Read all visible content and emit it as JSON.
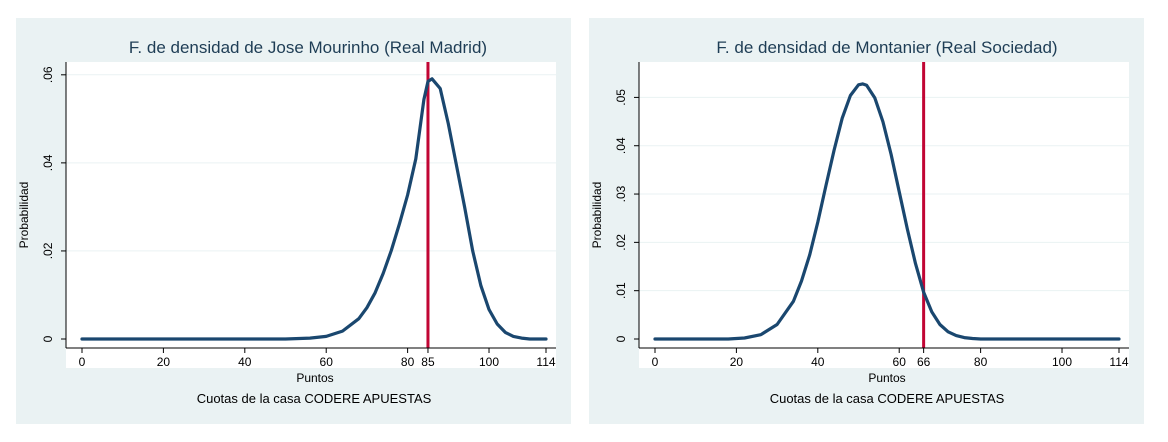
{
  "colors": {
    "panel_background": "#eaf2f3",
    "plot_background": "#ffffff",
    "curve": "#1a476f",
    "marker_line": "#c10534",
    "grid": "#eaf2f3"
  },
  "chart_data": [
    {
      "type": "line",
      "title": "F. de densidad de Jose Mourinho (Real Madrid)",
      "xlabel": "Puntos",
      "ylabel": "Probabilidad",
      "note": "Cuotas de la casa CODERE APUESTAS",
      "xlim": [
        0,
        114
      ],
      "ylim": [
        0,
        0.062
      ],
      "x_ticks": [
        0,
        20,
        40,
        60,
        80,
        85,
        100,
        114
      ],
      "y_ticks": [
        0,
        0.02,
        0.04,
        0.06
      ],
      "y_tick_labels": [
        "0",
        ".02",
        ".04",
        ".06"
      ],
      "grid": true,
      "vertical_line": 85,
      "series": [
        {
          "x": [
            0,
            50,
            56,
            60,
            64,
            68,
            70,
            72,
            74,
            76,
            78,
            80,
            82,
            84,
            85,
            86,
            88,
            90,
            92,
            94,
            96,
            98,
            100,
            102,
            104,
            106,
            108,
            110,
            114
          ],
          "y": [
            0,
            0,
            0.0002,
            0.0006,
            0.0018,
            0.0046,
            0.0071,
            0.0105,
            0.0149,
            0.0201,
            0.0262,
            0.0327,
            0.0409,
            0.0544,
            0.0585,
            0.0591,
            0.0569,
            0.0489,
            0.0394,
            0.03,
            0.02,
            0.0121,
            0.0067,
            0.0034,
            0.0015,
            0.0006,
            0.0002,
            0,
            0
          ]
        }
      ]
    },
    {
      "type": "line",
      "title": "F. de densidad de Montanier (Real Sociedad)",
      "xlabel": "Puntos",
      "ylabel": "Probabilidad",
      "note": "Cuotas de la casa CODERE APUESTAS",
      "xlim": [
        0,
        114
      ],
      "ylim": [
        0,
        0.0565
      ],
      "x_ticks": [
        0,
        20,
        40,
        60,
        66,
        80,
        100,
        114
      ],
      "y_ticks": [
        0,
        0.01,
        0.02,
        0.03,
        0.04,
        0.05
      ],
      "y_tick_labels": [
        "0",
        ".01",
        ".02",
        ".03",
        ".04",
        ".05"
      ],
      "grid": true,
      "vertical_line": 66,
      "series": [
        {
          "x": [
            0,
            18,
            22,
            26,
            30,
            34,
            36,
            38,
            40,
            42,
            44,
            46,
            48,
            50,
            51,
            52,
            54,
            56,
            58,
            60,
            62,
            64,
            66,
            68,
            70,
            72,
            74,
            76,
            78,
            80,
            84,
            114
          ],
          "y": [
            0,
            0,
            0.0002,
            0.0009,
            0.003,
            0.0078,
            0.012,
            0.0174,
            0.0242,
            0.0317,
            0.0391,
            0.0457,
            0.0504,
            0.0526,
            0.0528,
            0.0525,
            0.0499,
            0.045,
            0.0382,
            0.0305,
            0.0227,
            0.0156,
            0.0097,
            0.0056,
            0.003,
            0.0015,
            0.0007,
            0.0003,
            0.0001,
            0,
            0,
            0
          ]
        }
      ]
    }
  ]
}
